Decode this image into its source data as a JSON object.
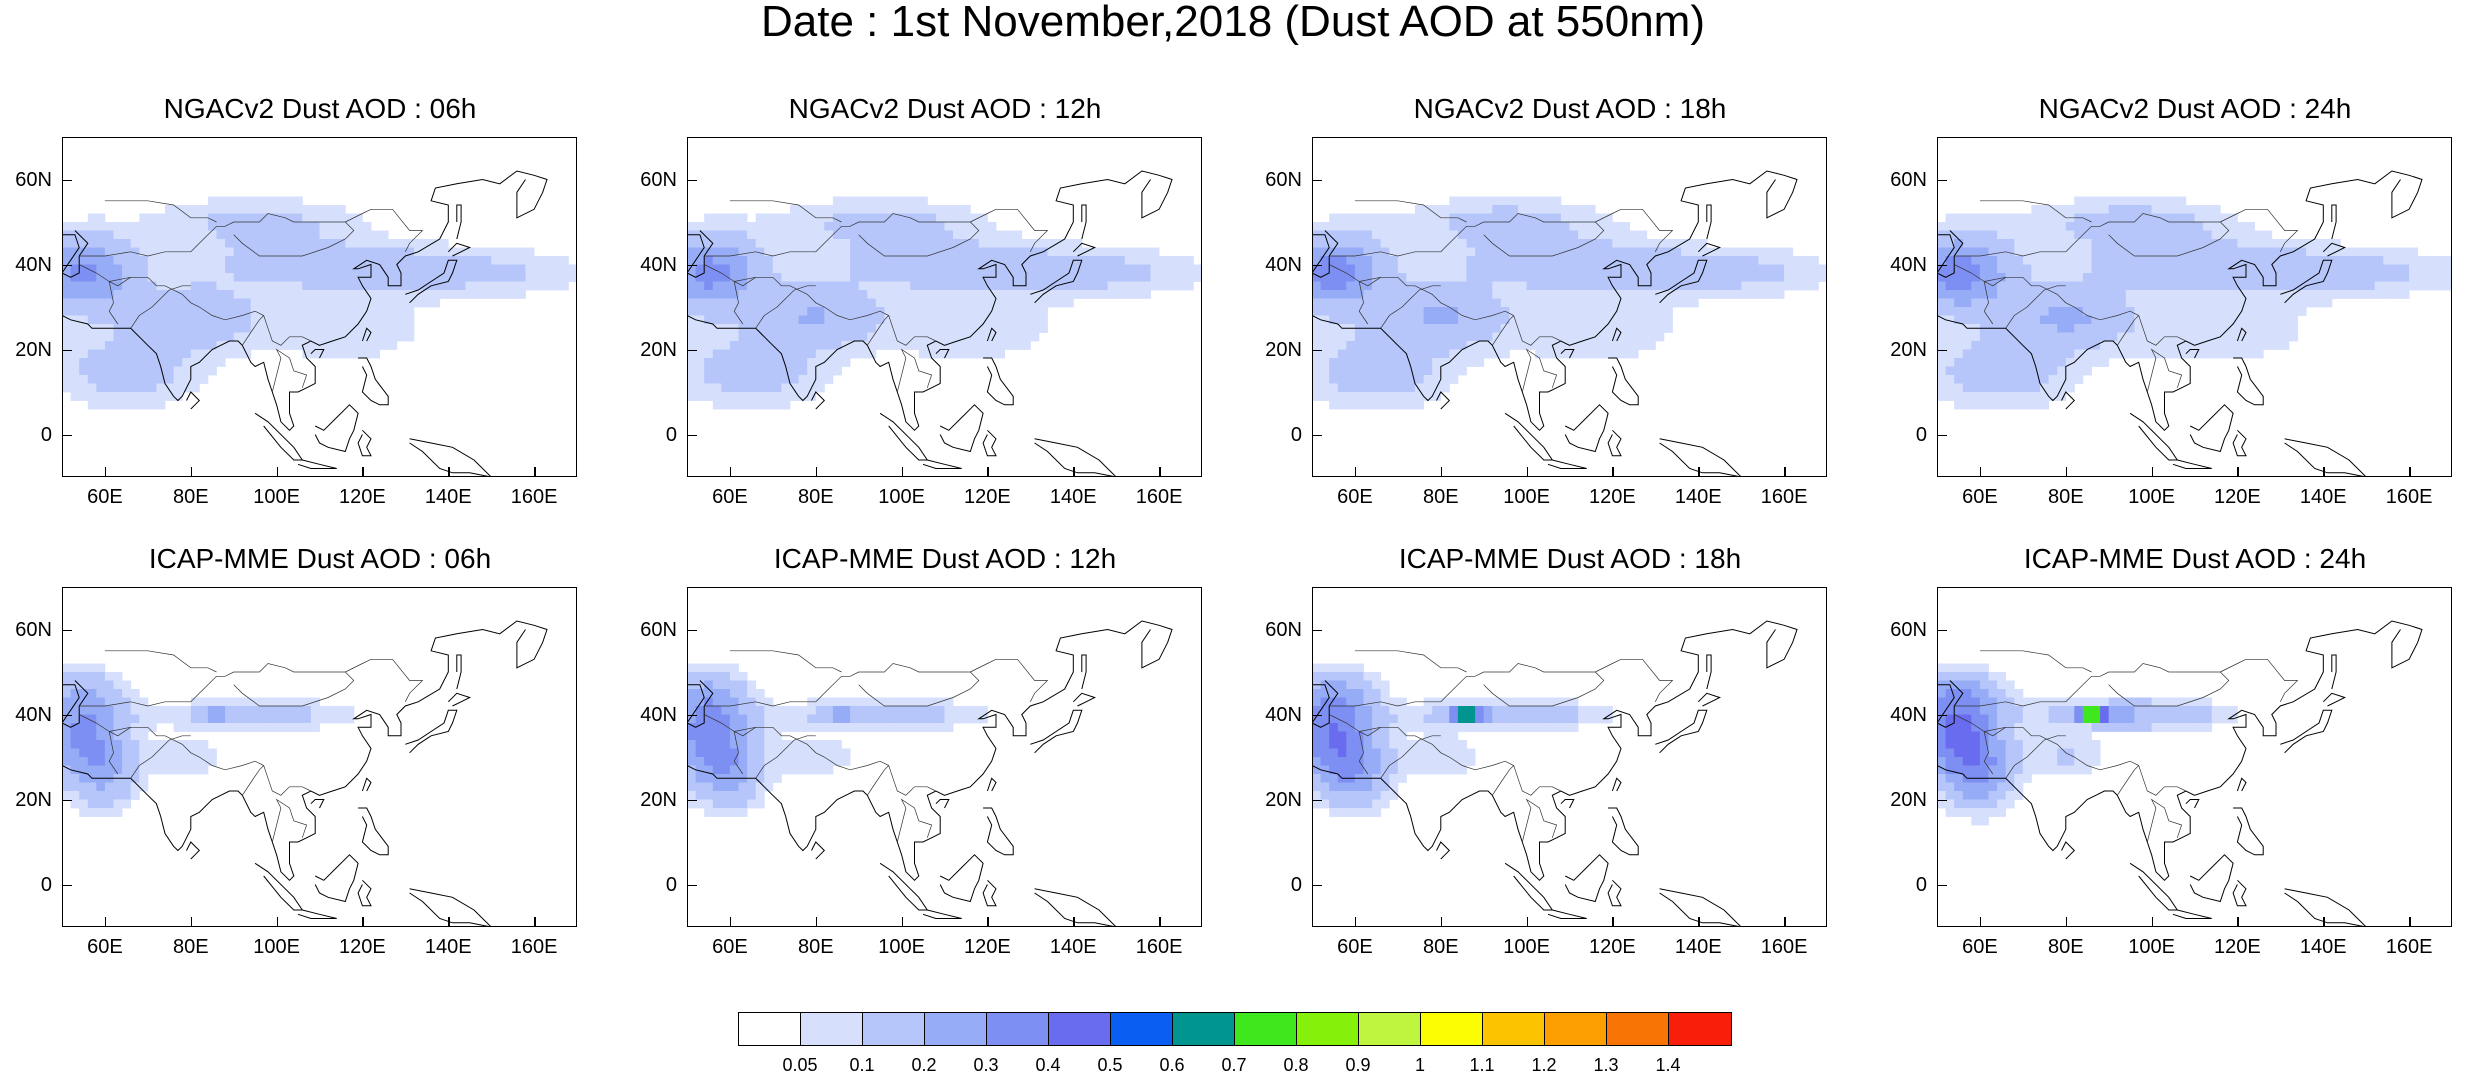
{
  "title": "Date : 1st November,2018 (Dust AOD at 550nm)",
  "panels": [
    {
      "title": "NGACv2 Dust AOD : 06h",
      "model": "ngac",
      "hour": 6
    },
    {
      "title": "NGACv2 Dust AOD : 12h",
      "model": "ngac",
      "hour": 12
    },
    {
      "title": "NGACv2 Dust AOD : 18h",
      "model": "ngac",
      "hour": 18
    },
    {
      "title": "NGACv2 Dust AOD : 24h",
      "model": "ngac",
      "hour": 24
    },
    {
      "title": "ICAP-MME Dust AOD : 06h",
      "model": "icap",
      "hour": 6
    },
    {
      "title": "ICAP-MME Dust AOD : 12h",
      "model": "icap",
      "hour": 12
    },
    {
      "title": "ICAP-MME Dust AOD : 18h",
      "model": "icap",
      "hour": 18
    },
    {
      "title": "ICAP-MME Dust AOD : 24h",
      "model": "icap",
      "hour": 24
    }
  ],
  "map": {
    "lon_range": [
      50,
      170
    ],
    "lat_range": [
      -10,
      70
    ],
    "lat_ticks": [
      "60N",
      "40N",
      "20N",
      "0"
    ],
    "lat_tick_values": [
      60,
      40,
      20,
      0
    ],
    "lon_ticks": [
      "60E",
      "80E",
      "100E",
      "120E",
      "140E",
      "160E"
    ],
    "lon_tick_values": [
      60,
      80,
      100,
      120,
      140,
      160
    ]
  },
  "colorbar": {
    "levels": [
      "0.05",
      "0.1",
      "0.2",
      "0.3",
      "0.4",
      "0.5",
      "0.6",
      "0.7",
      "0.8",
      "0.9",
      "1",
      "1.1",
      "1.2",
      "1.3",
      "1.4"
    ],
    "colors": [
      "#ffffff",
      "#d6e0fc",
      "#b6c6fa",
      "#97acf6",
      "#7e8ff3",
      "#6a6cf0",
      "#0a5ef2",
      "#00968f",
      "#3fe81c",
      "#85f10a",
      "#bff53e",
      "#fcfc02",
      "#fcc400",
      "#fc9d00",
      "#f87404",
      "#f81e0a"
    ]
  }
}
